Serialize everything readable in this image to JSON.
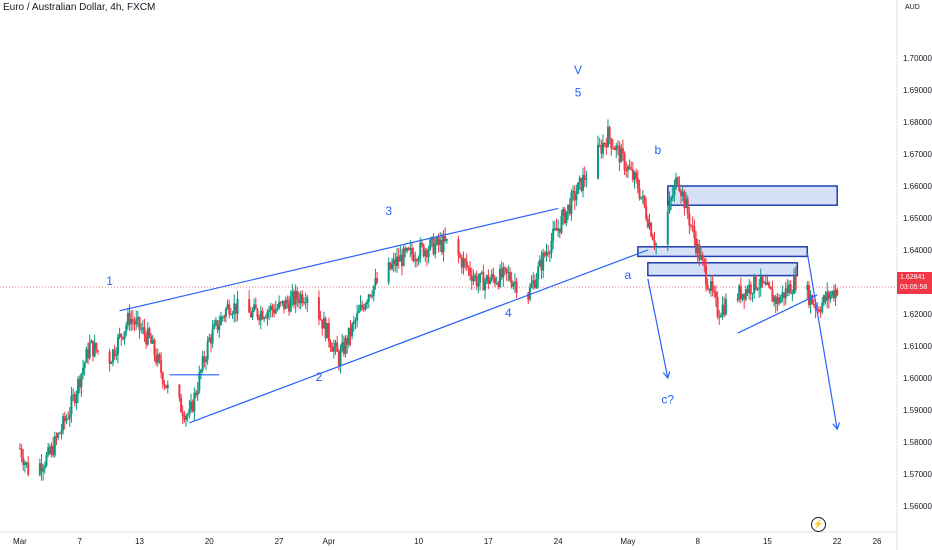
{
  "header": {
    "title": "Euro / Australian Dollar, 4h, FXCM"
  },
  "axis": {
    "unit": "AUD"
  },
  "price_badge": {
    "price": "1.62841",
    "countdown": "03:05:58",
    "color": "#f23645"
  },
  "colors": {
    "up": "#089981",
    "down": "#f23645",
    "annotation": "#2962ff",
    "zone_fill": "#d6e0f7"
  },
  "chart_data": {
    "type": "candlestick",
    "ylim": [
      1.555,
      1.715
    ],
    "y_ticks": [
      "1.56000",
      "1.57000",
      "1.58000",
      "1.59000",
      "1.60000",
      "1.61000",
      "1.62000",
      "1.63000",
      "1.64000",
      "1.65000",
      "1.66000",
      "1.67000",
      "1.68000",
      "1.69000",
      "1.70000"
    ],
    "x_ticks": [
      "Mar",
      "7",
      "13",
      "20",
      "27",
      "Apr",
      "10",
      "17",
      "24",
      "May",
      "8",
      "15",
      "22",
      "26"
    ],
    "close_path": [
      [
        "2024-03-01",
        1.578
      ],
      [
        "2024-03-02",
        1.57
      ],
      [
        "2024-03-04",
        1.576
      ],
      [
        "2024-03-06",
        1.59
      ],
      [
        "2024-03-08",
        1.61
      ],
      [
        "2024-03-10",
        1.606
      ],
      [
        "2024-03-12",
        1.619
      ],
      [
        "2024-03-14",
        1.612
      ],
      [
        "2024-03-16",
        1.595
      ],
      [
        "2024-03-18",
        1.588
      ],
      [
        "2024-03-20",
        1.612
      ],
      [
        "2024-03-22",
        1.623
      ],
      [
        "2024-03-24",
        1.62
      ],
      [
        "2024-03-27",
        1.622
      ],
      [
        "2024-03-30",
        1.627
      ],
      [
        "2024-04-02",
        1.606
      ],
      [
        "2024-04-05",
        1.627
      ],
      [
        "2024-04-08",
        1.637
      ],
      [
        "2024-04-11",
        1.641
      ],
      [
        "2024-04-13",
        1.642
      ],
      [
        "2024-04-16",
        1.63
      ],
      [
        "2024-04-19",
        1.632
      ],
      [
        "2024-04-21",
        1.626
      ],
      [
        "2024-04-23",
        1.641
      ],
      [
        "2024-04-26",
        1.659
      ],
      [
        "2024-04-29",
        1.676
      ],
      [
        "2024-05-02",
        1.66
      ],
      [
        "2024-05-04",
        1.64
      ],
      [
        "2024-05-06",
        1.663
      ],
      [
        "2024-05-08",
        1.64
      ],
      [
        "2024-05-10",
        1.621
      ],
      [
        "2024-05-12",
        1.626
      ],
      [
        "2024-05-14",
        1.63
      ],
      [
        "2024-05-16",
        1.624
      ],
      [
        "2024-05-18",
        1.631
      ],
      [
        "2024-05-20",
        1.622
      ],
      [
        "2024-05-22",
        1.628
      ]
    ],
    "last_price": 1.62841,
    "wave_labels": [
      {
        "text": "1",
        "date": "2024-03-10",
        "price": 1.629
      },
      {
        "text": "2",
        "date": "2024-03-31",
        "price": 1.599
      },
      {
        "text": "3",
        "date": "2024-04-07",
        "price": 1.651
      },
      {
        "text": "4",
        "date": "2024-04-19",
        "price": 1.619
      },
      {
        "text": "V",
        "date": "2024-04-26",
        "price": 1.695
      },
      {
        "text": "5",
        "date": "2024-04-26",
        "price": 1.688
      },
      {
        "text": "b",
        "date": "2024-05-04",
        "price": 1.67
      },
      {
        "text": "a",
        "date": "2024-05-01",
        "price": 1.631
      },
      {
        "text": "c?",
        "date": "2024-05-05",
        "price": 1.592
      }
    ],
    "lines": [
      {
        "from": [
          "2024-03-11",
          1.621
        ],
        "to": [
          "2024-04-24",
          1.653
        ]
      },
      {
        "from": [
          "2024-03-18",
          1.586
        ],
        "to": [
          "2024-05-03",
          1.64
        ]
      },
      {
        "from": [
          "2024-03-16",
          1.601
        ],
        "to": [
          "2024-03-21",
          1.601
        ]
      },
      {
        "from": [
          "2024-05-12",
          1.614
        ],
        "to": [
          "2024-05-20",
          1.626
        ]
      }
    ],
    "arrows": [
      {
        "from": [
          "2024-05-03",
          1.631
        ],
        "to": [
          "2024-05-05",
          1.6
        ]
      },
      {
        "from": [
          "2024-05-19",
          1.639
        ],
        "to": [
          "2024-05-22",
          1.584
        ]
      }
    ],
    "zones": [
      {
        "from": "2024-05-05",
        "to": "2024-05-22",
        "top": 1.66,
        "bottom": 1.654
      },
      {
        "from": "2024-05-02",
        "to": "2024-05-19",
        "top": 1.641,
        "bottom": 1.638
      },
      {
        "from": "2024-05-03",
        "to": "2024-05-18",
        "top": 1.636,
        "bottom": 1.632
      }
    ]
  }
}
